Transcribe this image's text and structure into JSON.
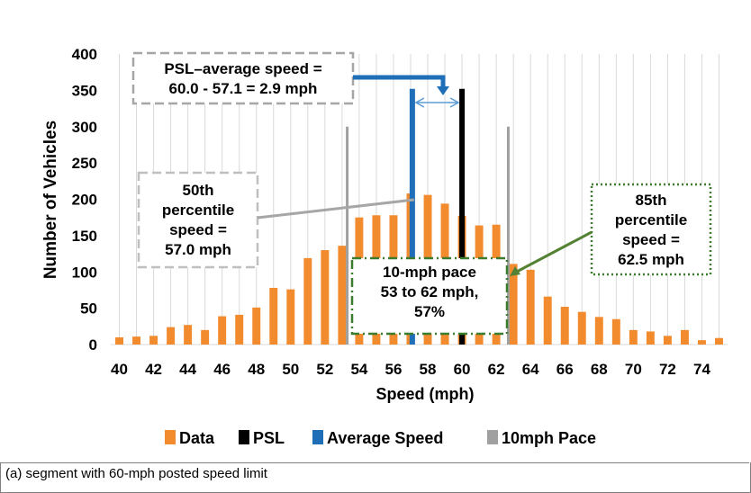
{
  "chart_data": {
    "type": "bar",
    "title": "",
    "xlabel": "Speed (mph)",
    "ylabel": "Number of Vehicles",
    "ylim": [
      0,
      400
    ],
    "yticks": [
      0,
      50,
      100,
      150,
      200,
      250,
      300,
      350,
      400
    ],
    "xticks": [
      40,
      42,
      44,
      46,
      48,
      50,
      52,
      54,
      56,
      58,
      60,
      62,
      64,
      66,
      68,
      70,
      72,
      74
    ],
    "grid": "vertical",
    "categories": [
      40,
      41,
      42,
      43,
      44,
      45,
      46,
      47,
      48,
      49,
      50,
      51,
      52,
      53,
      54,
      55,
      56,
      57,
      58,
      59,
      60,
      61,
      62,
      63,
      64,
      65,
      66,
      67,
      68,
      69,
      70,
      71,
      72,
      73,
      74,
      75
    ],
    "series": [
      {
        "name": "Data",
        "color": "#f28a2e",
        "values": [
          10,
          11,
          12,
          24,
          27,
          20,
          39,
          41,
          51,
          78,
          76,
          119,
          130,
          136,
          175,
          178,
          178,
          208,
          206,
          194,
          177,
          164,
          165,
          111,
          103,
          66,
          52,
          45,
          38,
          35,
          20,
          18,
          12,
          20,
          6,
          9
        ]
      }
    ],
    "reference_lines": [
      {
        "name": "PSL",
        "x": 60,
        "top": 352,
        "color": "#000000"
      },
      {
        "name": "Average Speed",
        "x": 57.1,
        "top": 352,
        "color": "#1f6fb8"
      },
      {
        "name": "10mph Pace",
        "x": 53.3,
        "top": 300,
        "color": "#a0a0a0"
      },
      {
        "name": "10mph Pace",
        "x": 62.7,
        "top": 300,
        "color": "#a0a0a0"
      }
    ],
    "legend": [
      {
        "label": "Data",
        "color": "#f28a2e"
      },
      {
        "label": "PSL",
        "color": "#000000"
      },
      {
        "label": "Average Speed",
        "color": "#1f6fb8"
      },
      {
        "label": "10mph Pace",
        "color": "#a0a0a0"
      }
    ],
    "legend_position": "bottom",
    "annotations": [
      {
        "id": "psl-avg",
        "lines": [
          "PSL–average speed =",
          "60.0 - 57.1 = 2.9 mph"
        ]
      },
      {
        "id": "p50",
        "lines": [
          "50th",
          "percentile",
          "speed =",
          "57.0 mph"
        ]
      },
      {
        "id": "pace",
        "lines": [
          "10-mph pace",
          "53 to 62 mph,",
          "57%"
        ]
      },
      {
        "id": "p85",
        "lines": [
          "85th",
          "percentile",
          "speed =",
          "62.5 mph"
        ]
      }
    ]
  },
  "caption": "(a) segment with 60-mph posted speed limit"
}
